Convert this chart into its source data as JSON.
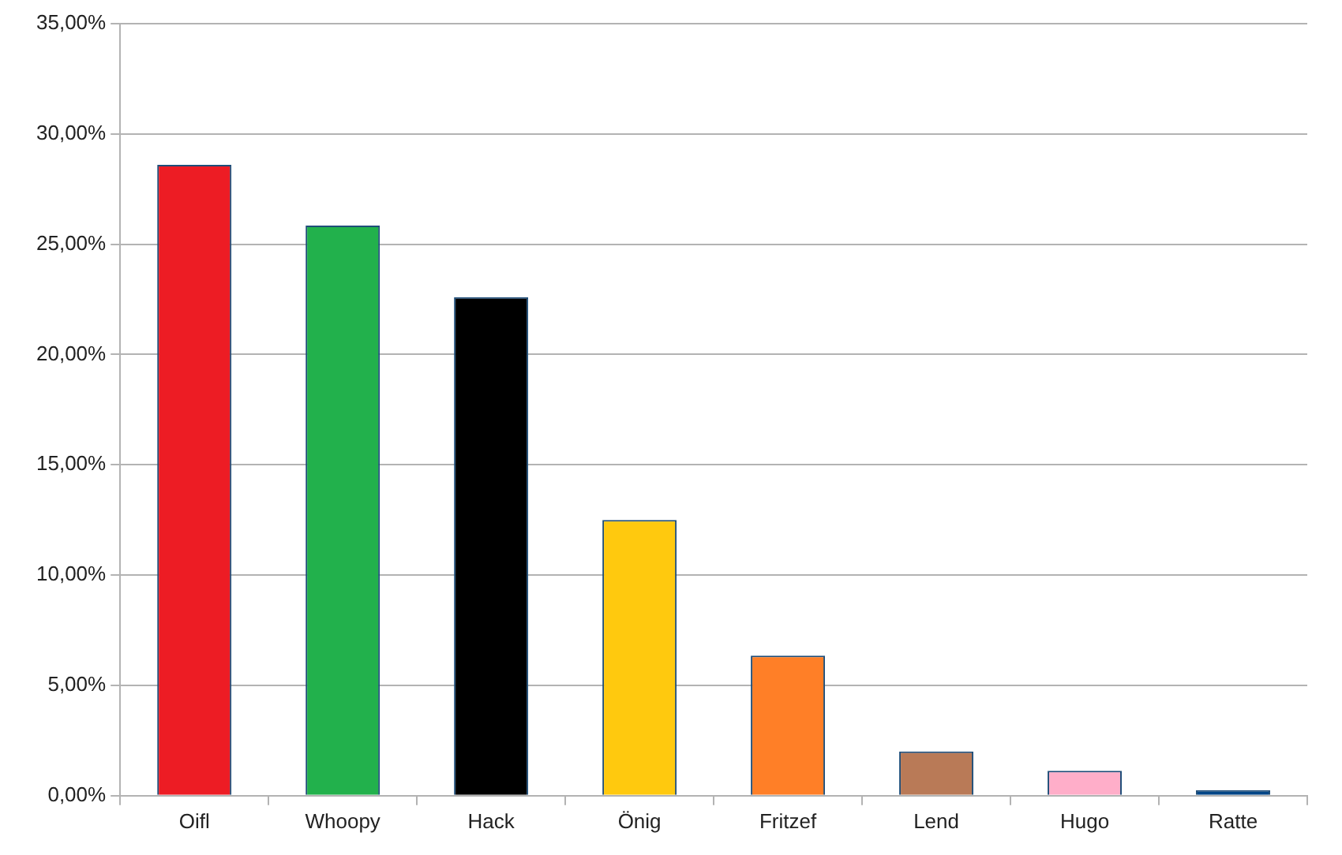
{
  "chart_data": {
    "type": "bar",
    "categories": [
      "Oifl",
      "Whoopy",
      "Hack",
      "Önig",
      "Fritzef",
      "Lend",
      "Hugo",
      "Ratte"
    ],
    "values": [
      28.6,
      25.85,
      22.6,
      12.5,
      6.35,
      2.0,
      1.13,
      0.25
    ],
    "colors": [
      "#ed1c24",
      "#22b14c",
      "#000000",
      "#ffc90e",
      "#ff7f27",
      "#b97a57",
      "#ffaec9",
      "#004586"
    ],
    "ylim": [
      0,
      35
    ],
    "yticks": [
      {
        "value": 0,
        "label": "0,00%"
      },
      {
        "value": 5,
        "label": "5,00%"
      },
      {
        "value": 10,
        "label": "10,00%"
      },
      {
        "value": 15,
        "label": "15,00%"
      },
      {
        "value": 20,
        "label": "20,00%"
      },
      {
        "value": 25,
        "label": "25,00%"
      },
      {
        "value": 30,
        "label": "30,00%"
      },
      {
        "value": 35,
        "label": "35,00%"
      }
    ],
    "grid": "y"
  }
}
